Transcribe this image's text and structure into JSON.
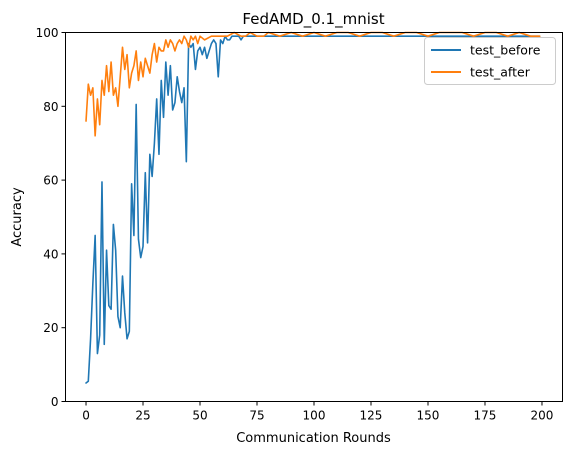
{
  "chart_data": {
    "type": "line",
    "title": "FedAMD_0.1_mnist",
    "xlabel": "Communication Rounds",
    "ylabel": "Accuracy",
    "xlim": [
      -9,
      209
    ],
    "ylim": [
      0,
      100
    ],
    "xticks": [
      0,
      25,
      50,
      75,
      100,
      125,
      150,
      175,
      200
    ],
    "yticks": [
      0,
      20,
      40,
      60,
      80,
      100
    ],
    "legend_position": "top-right",
    "series": [
      {
        "name": "test_before",
        "color": "#1f77b4",
        "x": [
          0,
          1,
          2,
          3,
          4,
          5,
          6,
          7,
          8,
          9,
          10,
          11,
          12,
          13,
          14,
          15,
          16,
          17,
          18,
          19,
          20,
          21,
          22,
          23,
          24,
          25,
          26,
          27,
          28,
          29,
          30,
          31,
          32,
          33,
          34,
          35,
          36,
          37,
          38,
          39,
          40,
          41,
          42,
          43,
          44,
          45,
          46,
          47,
          48,
          49,
          50,
          51,
          52,
          53,
          54,
          55,
          56,
          57,
          58,
          59,
          60,
          61,
          62,
          63,
          64,
          65,
          66,
          67,
          68,
          69,
          70,
          72,
          74,
          76,
          78,
          80,
          85,
          90,
          95,
          100,
          105,
          110,
          115,
          120,
          125,
          130,
          135,
          140,
          145,
          150,
          155,
          160,
          165,
          170,
          175,
          180,
          185,
          190,
          195,
          199
        ],
        "y": [
          5,
          5.5,
          17,
          32,
          45,
          13,
          18,
          59.5,
          15.5,
          41,
          26,
          25,
          48,
          41,
          23,
          20,
          34,
          24,
          17,
          19,
          59,
          45,
          80.5,
          44,
          39,
          42,
          62,
          43,
          67,
          61,
          70,
          82,
          67,
          87,
          77,
          92,
          83,
          91,
          79,
          81,
          88,
          84,
          81,
          85,
          65,
          97,
          96,
          97,
          90,
          95,
          96,
          94,
          96,
          93,
          95,
          97,
          98,
          97,
          88,
          98,
          97,
          99,
          98,
          98,
          99,
          99,
          99,
          99,
          98,
          99,
          99,
          99,
          99,
          99,
          99,
          99,
          99,
          99,
          99,
          99,
          99,
          99,
          99,
          99,
          99,
          99,
          99,
          99,
          99,
          99,
          99,
          99,
          99,
          99,
          99,
          99,
          99,
          99,
          99,
          99
        ]
      },
      {
        "name": "test_after",
        "color": "#ff7f0e",
        "x": [
          0,
          1,
          2,
          3,
          4,
          5,
          6,
          7,
          8,
          9,
          10,
          11,
          12,
          13,
          14,
          15,
          16,
          17,
          18,
          19,
          20,
          21,
          22,
          23,
          24,
          25,
          26,
          27,
          28,
          29,
          30,
          31,
          32,
          33,
          34,
          35,
          36,
          37,
          38,
          39,
          40,
          41,
          42,
          43,
          44,
          45,
          46,
          47,
          48,
          49,
          50,
          52,
          55,
          58,
          60,
          62,
          65,
          68,
          70,
          72,
          75,
          78,
          80,
          85,
          90,
          95,
          100,
          105,
          110,
          115,
          120,
          125,
          130,
          135,
          140,
          145,
          150,
          155,
          160,
          165,
          170,
          175,
          180,
          185,
          190,
          195,
          199
        ],
        "y": [
          76,
          86,
          83,
          85,
          72,
          82,
          75,
          87,
          83,
          91,
          84,
          92,
          83,
          85,
          80,
          88,
          96,
          90,
          94,
          85,
          89,
          91,
          95,
          87,
          92,
          88,
          93,
          91,
          89,
          94,
          97,
          92,
          96,
          95,
          95,
          98,
          96,
          98,
          97,
          95,
          97,
          98,
          97,
          99,
          98,
          96,
          99,
          98,
          99,
          97,
          99,
          98,
          99,
          99,
          99,
          99,
          100,
          99,
          99,
          100,
          99,
          99,
          100,
          99,
          100,
          99,
          100,
          99,
          100,
          100,
          99,
          100,
          100,
          99,
          100,
          100,
          99,
          100,
          100,
          100,
          99,
          100,
          100,
          99,
          100,
          99,
          99
        ]
      }
    ]
  }
}
